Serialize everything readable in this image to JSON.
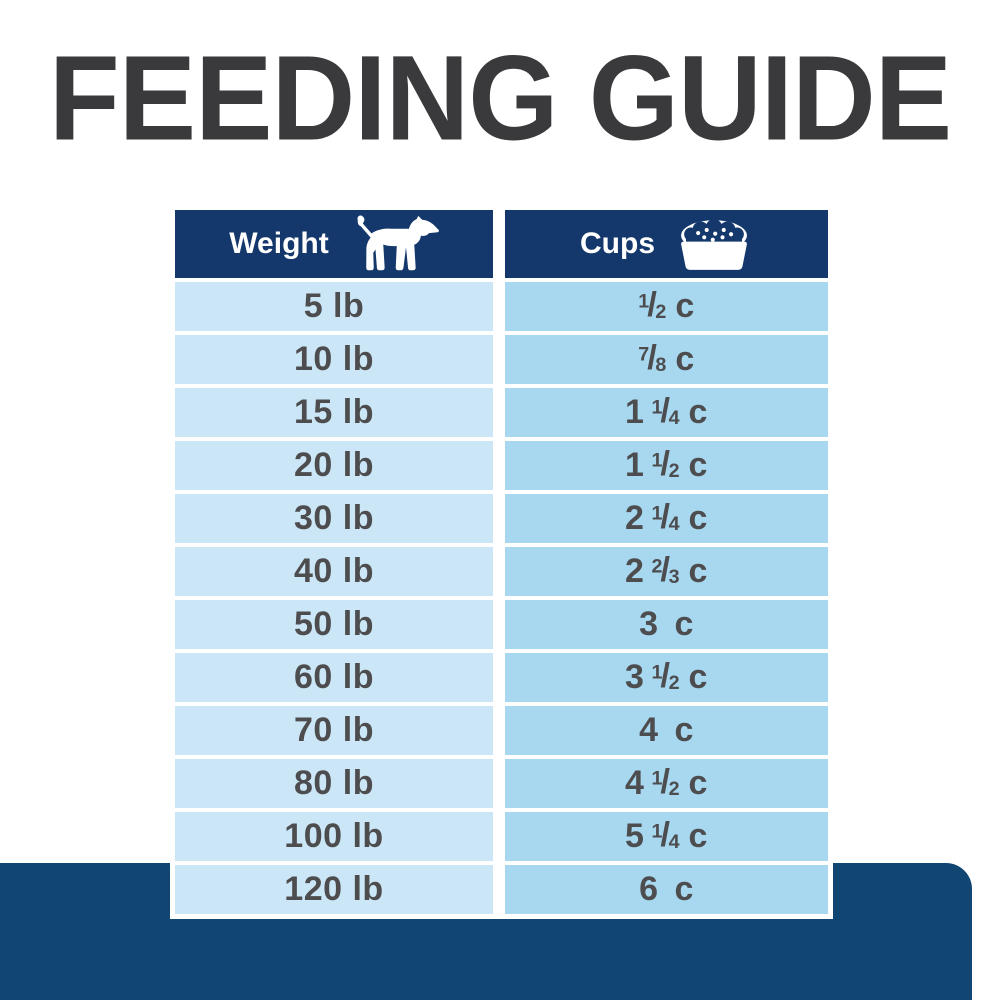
{
  "title": {
    "text": "FEEDING GUIDE",
    "color": "#3a3a3c"
  },
  "table": {
    "header": {
      "weight_label": "Weight",
      "weight_icon": "dog-icon",
      "cups_label": "Cups",
      "cups_icon": "food-bowl-icon",
      "bg_color": "#14386b",
      "text_color": "#ffffff"
    },
    "columns": {
      "weight_cell_bg": "#cbe6f6",
      "cups_cell_bg": "#a7d8ef",
      "cell_text_color": "#4d4d4f"
    },
    "rows": [
      {
        "weight": "5 lb",
        "cups": {
          "whole": "",
          "num": "1",
          "den": "2",
          "unit": "c"
        }
      },
      {
        "weight": "10 lb",
        "cups": {
          "whole": "",
          "num": "7",
          "den": "8",
          "unit": "c"
        }
      },
      {
        "weight": "15 lb",
        "cups": {
          "whole": "1",
          "num": "1",
          "den": "4",
          "unit": "c"
        }
      },
      {
        "weight": "20 lb",
        "cups": {
          "whole": "1",
          "num": "1",
          "den": "2",
          "unit": "c"
        }
      },
      {
        "weight": "30 lb",
        "cups": {
          "whole": "2",
          "num": "1",
          "den": "4",
          "unit": "c"
        }
      },
      {
        "weight": "40 lb",
        "cups": {
          "whole": "2",
          "num": "2",
          "den": "3",
          "unit": "c"
        }
      },
      {
        "weight": "50 lb",
        "cups": {
          "whole": "3",
          "num": "",
          "den": "",
          "unit": "c"
        }
      },
      {
        "weight": "60 lb",
        "cups": {
          "whole": "3",
          "num": "1",
          "den": "2",
          "unit": "c"
        }
      },
      {
        "weight": "70 lb",
        "cups": {
          "whole": "4",
          "num": "",
          "den": "",
          "unit": "c"
        }
      },
      {
        "weight": "80 lb",
        "cups": {
          "whole": "4",
          "num": "1",
          "den": "2",
          "unit": "c"
        }
      },
      {
        "weight": "100 lb",
        "cups": {
          "whole": "5",
          "num": "1",
          "den": "4",
          "unit": "c"
        }
      },
      {
        "weight": "120 lb",
        "cups": {
          "whole": "6",
          "num": "",
          "den": "",
          "unit": "c"
        }
      }
    ]
  },
  "footer_band": {
    "color": "#114672"
  },
  "chart_data": {
    "type": "table",
    "title": "FEEDING GUIDE",
    "columns": [
      "Weight",
      "Cups"
    ],
    "rows": [
      [
        "5 lb",
        "1/2 c"
      ],
      [
        "10 lb",
        "7/8 c"
      ],
      [
        "15 lb",
        "1 1/4 c"
      ],
      [
        "20 lb",
        "1 1/2 c"
      ],
      [
        "30 lb",
        "2 1/4 c"
      ],
      [
        "40 lb",
        "2 2/3 c"
      ],
      [
        "50 lb",
        "3 c"
      ],
      [
        "60 lb",
        "3 1/2 c"
      ],
      [
        "70 lb",
        "4 c"
      ],
      [
        "80 lb",
        "4 1/2 c"
      ],
      [
        "100 lb",
        "5 1/4 c"
      ],
      [
        "120 lb",
        "6 c"
      ]
    ]
  }
}
